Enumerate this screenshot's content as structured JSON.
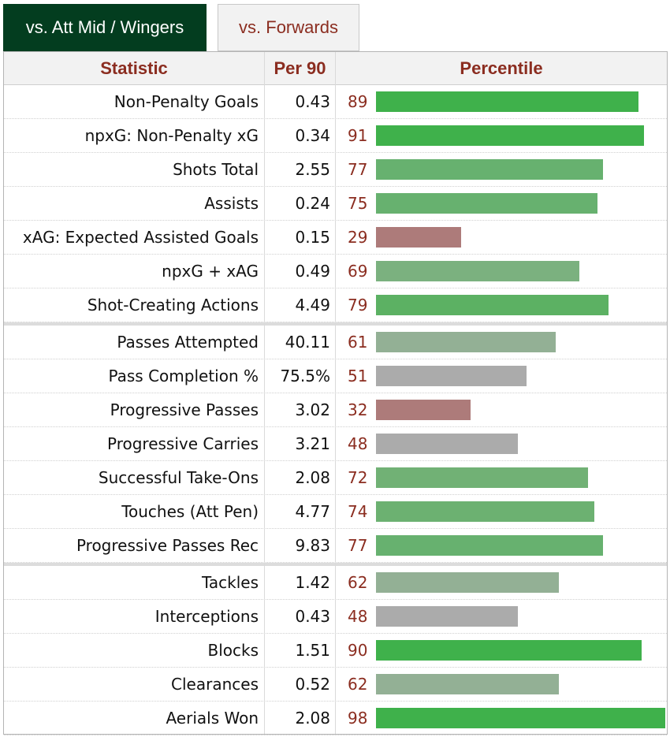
{
  "tabs": [
    {
      "label": "vs. Att Mid / Wingers",
      "active": true
    },
    {
      "label": "vs. Forwards",
      "active": false
    }
  ],
  "table": {
    "headers": {
      "statistic": "Statistic",
      "per90": "Per 90",
      "percentile": "Percentile"
    },
    "groups": [
      [
        {
          "stat": "Non-Penalty Goals",
          "per90": "0.43",
          "percentile": 89,
          "color": "#3fb14b"
        },
        {
          "stat": "npxG: Non-Penalty xG",
          "per90": "0.34",
          "percentile": 91,
          "color": "#3fb14b"
        },
        {
          "stat": "Shots Total",
          "per90": "2.55",
          "percentile": 77,
          "color": "#67b16f"
        },
        {
          "stat": "Assists",
          "per90": "0.24",
          "percentile": 75,
          "color": "#67b16f"
        },
        {
          "stat": "xAG: Expected Assisted Goals",
          "per90": "0.15",
          "percentile": 29,
          "color": "#ad7b7a"
        },
        {
          "stat": "npxG + xAG",
          "per90": "0.49",
          "percentile": 69,
          "color": "#7bb17f"
        },
        {
          "stat": "Shot-Creating Actions",
          "per90": "4.49",
          "percentile": 79,
          "color": "#5cb163"
        }
      ],
      [
        {
          "stat": "Passes Attempted",
          "per90": "40.11",
          "percentile": 61,
          "color": "#93b095"
        },
        {
          "stat": "Pass Completion %",
          "per90": "75.5%",
          "percentile": 51,
          "color": "#ababab"
        },
        {
          "stat": "Progressive Passes",
          "per90": "3.02",
          "percentile": 32,
          "color": "#ad7b7a"
        },
        {
          "stat": "Progressive Carries",
          "per90": "3.21",
          "percentile": 48,
          "color": "#ababab"
        },
        {
          "stat": "Successful Take-Ons",
          "per90": "2.08",
          "percentile": 72,
          "color": "#71b175"
        },
        {
          "stat": "Touches (Att Pen)",
          "per90": "4.77",
          "percentile": 74,
          "color": "#6cb171"
        },
        {
          "stat": "Progressive Passes Rec",
          "per90": "9.83",
          "percentile": 77,
          "color": "#67b16f"
        }
      ],
      [
        {
          "stat": "Tackles",
          "per90": "1.42",
          "percentile": 62,
          "color": "#93b095"
        },
        {
          "stat": "Interceptions",
          "per90": "0.43",
          "percentile": 48,
          "color": "#ababab"
        },
        {
          "stat": "Blocks",
          "per90": "1.51",
          "percentile": 90,
          "color": "#3fb14b"
        },
        {
          "stat": "Clearances",
          "per90": "0.52",
          "percentile": 62,
          "color": "#93b095"
        },
        {
          "stat": "Aerials Won",
          "per90": "2.08",
          "percentile": 98,
          "color": "#3fb14b"
        }
      ]
    ]
  }
}
